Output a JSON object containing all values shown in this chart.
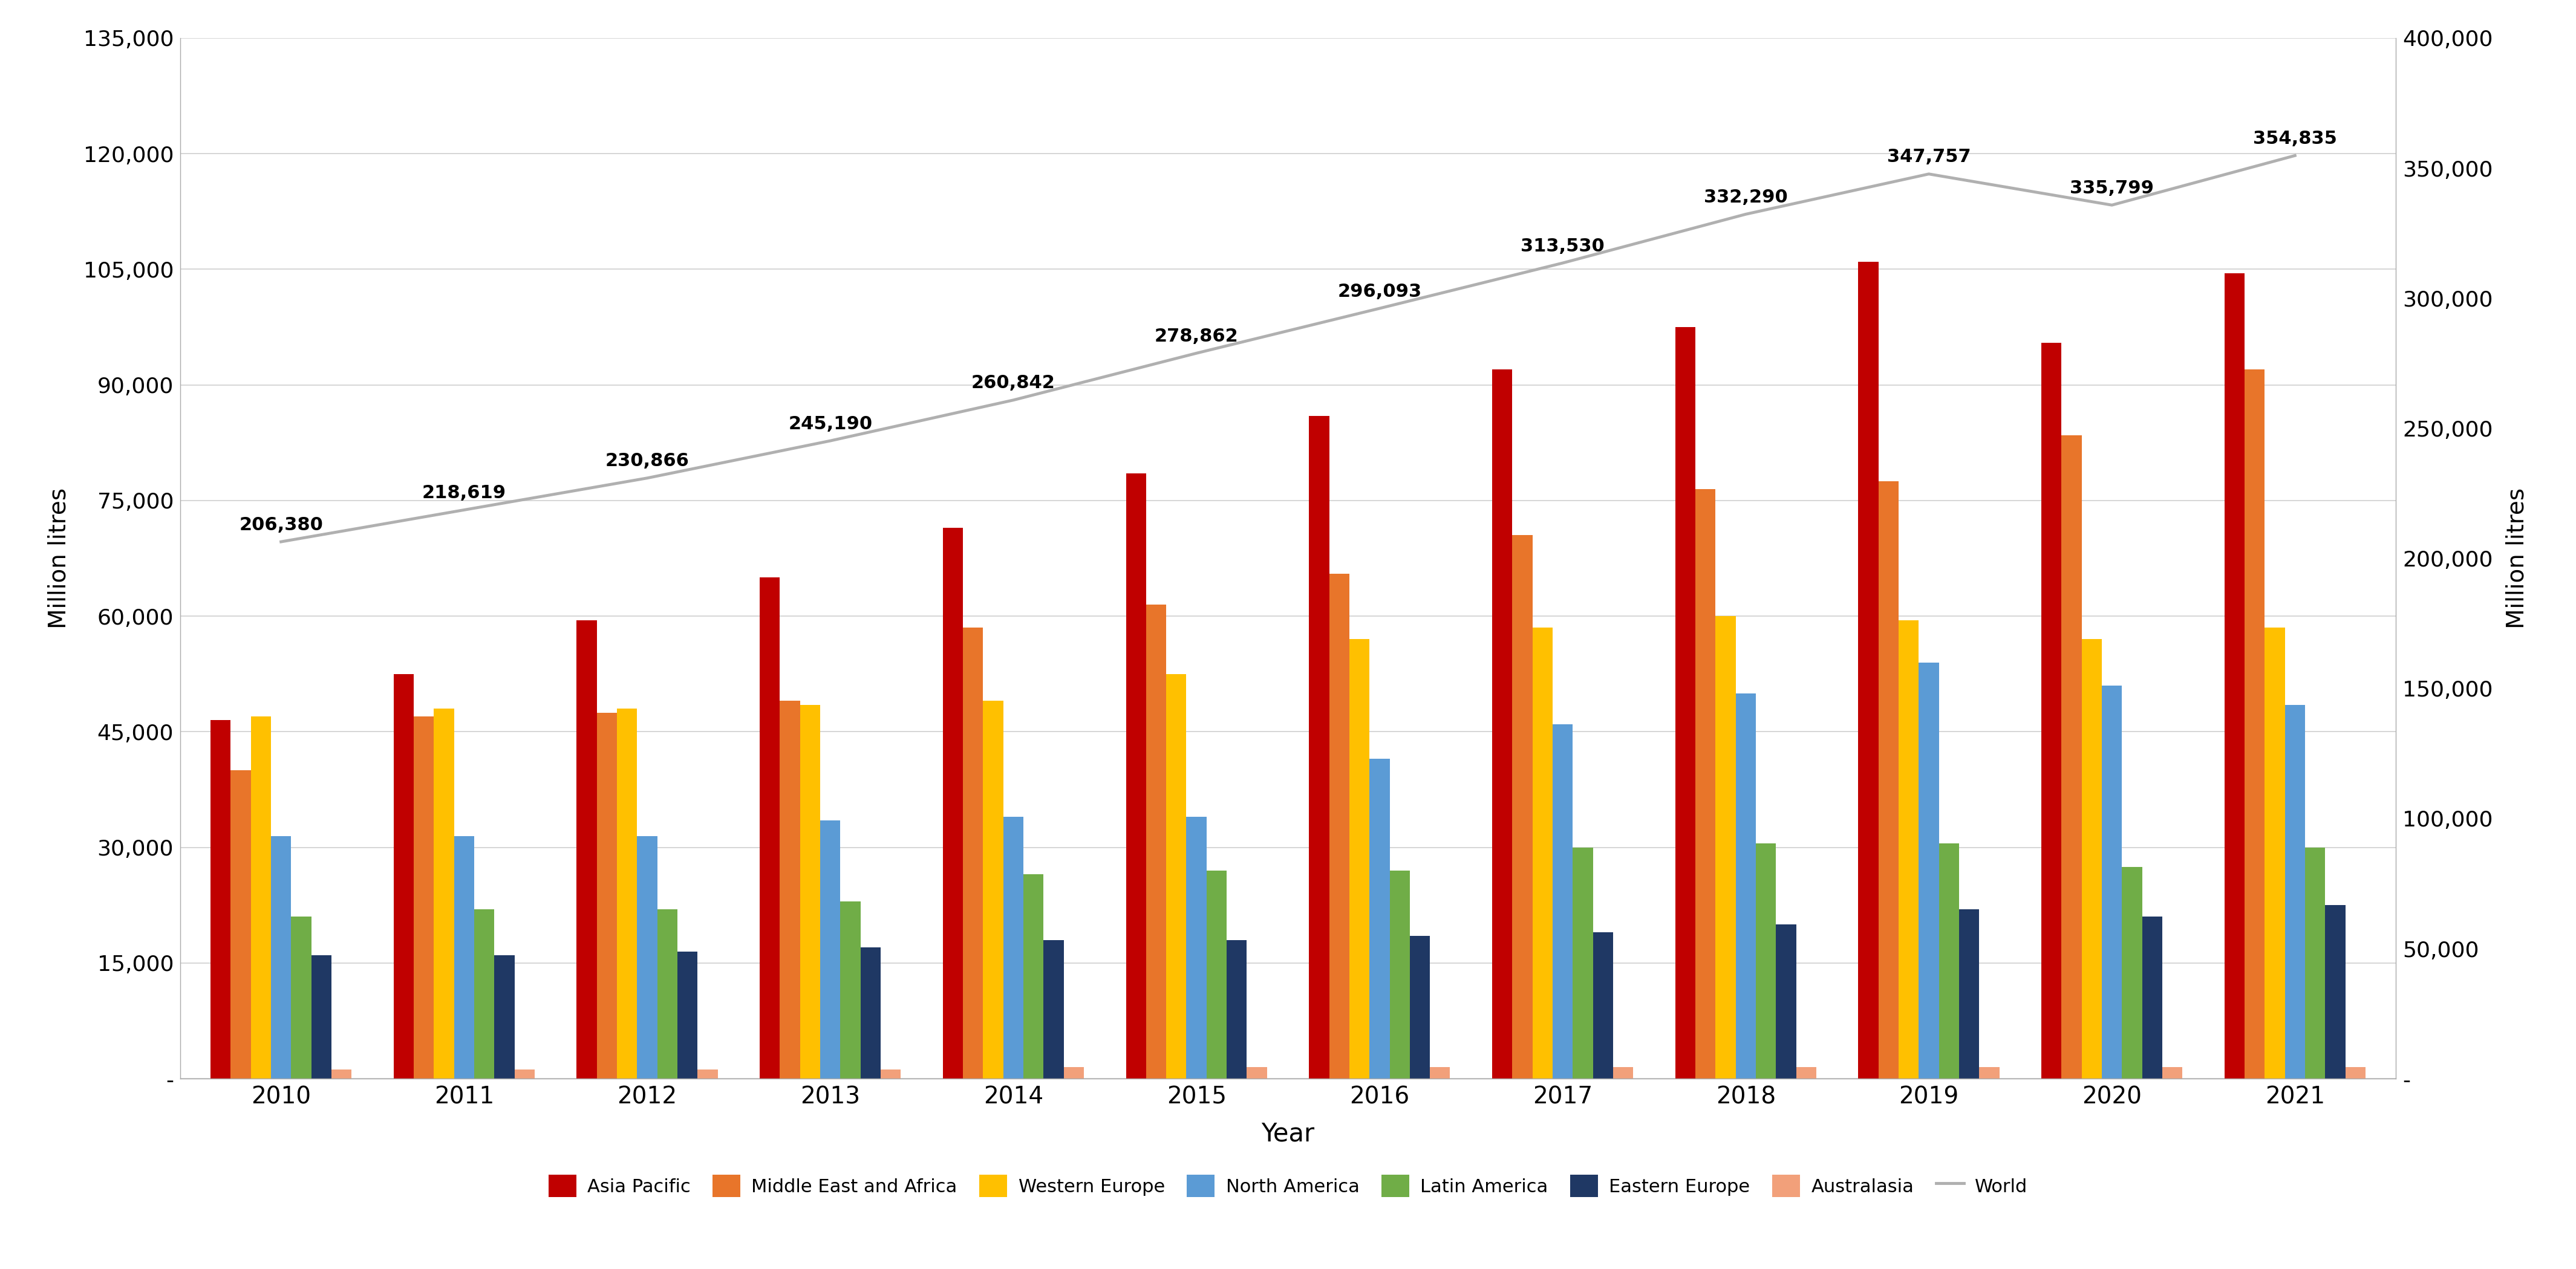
{
  "years": [
    2010,
    2011,
    2012,
    2013,
    2014,
    2015,
    2016,
    2017,
    2018,
    2019,
    2020,
    2021
  ],
  "series": {
    "Asia Pacific": [
      46500,
      52500,
      59500,
      65000,
      71500,
      78500,
      86000,
      92000,
      97500,
      106000,
      95500,
      104500
    ],
    "Middle East and Africa": [
      40000,
      47000,
      47500,
      49000,
      58500,
      61500,
      65500,
      70500,
      76500,
      77500,
      83500,
      92000
    ],
    "Western Europe": [
      47000,
      48000,
      48000,
      48500,
      49000,
      52500,
      57000,
      58500,
      60000,
      59500,
      57000,
      58500
    ],
    "North America": [
      31500,
      31500,
      31500,
      33500,
      34000,
      34000,
      41500,
      46000,
      50000,
      54000,
      51000,
      48500
    ],
    "Latin America": [
      21000,
      22000,
      22000,
      23000,
      26500,
      27000,
      27000,
      30000,
      30500,
      30500,
      27500,
      30000
    ],
    "Eastern Europe": [
      16000,
      16000,
      16500,
      17000,
      18000,
      18000,
      18500,
      19000,
      20000,
      22000,
      21000,
      22500
    ],
    "Australasia": [
      1200,
      1200,
      1200,
      1200,
      1500,
      1500,
      1500,
      1500,
      1500,
      1500,
      1500,
      1500
    ]
  },
  "world": [
    206380,
    218619,
    230866,
    245190,
    260842,
    278862,
    296093,
    313530,
    332290,
    347757,
    335799,
    354835
  ],
  "bar_colors": {
    "Asia Pacific": "#C00000",
    "Middle East and Africa": "#E8752A",
    "Western Europe": "#FFC000",
    "North America": "#5B9BD5",
    "Latin America": "#70AD47",
    "Eastern Europe": "#1F3864",
    "Australasia": "#F2A07A"
  },
  "world_color": "#B0B0B0",
  "left_ylim": [
    0,
    135000
  ],
  "right_ylim": [
    0,
    400000
  ],
  "left_yticks": [
    0,
    15000,
    30000,
    45000,
    60000,
    75000,
    90000,
    105000,
    120000,
    135000
  ],
  "right_yticks": [
    0,
    50000,
    100000,
    150000,
    200000,
    250000,
    300000,
    350000,
    400000
  ],
  "left_yticklabels": [
    "-",
    "15,000",
    "30,000",
    "45,000",
    "60,000",
    "75,000",
    "90,000",
    "105,000",
    "120,000",
    "135,000"
  ],
  "right_yticklabels": [
    "-",
    "50,000",
    "100,000",
    "150,000",
    "200,000",
    "250,000",
    "300,000",
    "350,000",
    "400,000"
  ],
  "xlabel": "Year",
  "ylabel_left": "Million litres",
  "ylabel_right": "Million litres",
  "world_labels": [
    "206,380",
    "218,619",
    "230,866",
    "245,190",
    "260,842",
    "278,862",
    "296,093",
    "313,530",
    "332,290",
    "347,757",
    "335,799",
    "354,835"
  ],
  "background_color": "#FFFFFF",
  "grid_color": "#D0D0D0",
  "bar_width": 0.11
}
